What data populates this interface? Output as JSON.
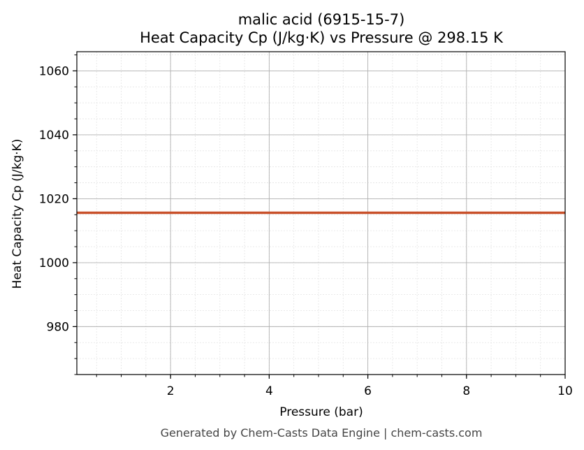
{
  "chart_data": {
    "type": "line",
    "title": "malic acid (6915-15-7)",
    "subtitle": "Heat Capacity Cp (J/kg·K) vs Pressure @ 298.15 K",
    "xlabel": "Pressure (bar)",
    "ylabel": "Heat Capacity Cp (J/kg·K)",
    "xlim": [
      0.1,
      10
    ],
    "ylim": [
      965,
      1066
    ],
    "x_ticks": [
      2,
      4,
      6,
      8,
      10
    ],
    "y_ticks": [
      980,
      1000,
      1020,
      1040,
      1060
    ],
    "x_minor_step": 0.5,
    "y_minor_step": 5,
    "grid": true,
    "series": [
      {
        "color": "#c8502a",
        "x": [
          0.1,
          10
        ],
        "y": [
          1015.6,
          1015.6
        ]
      }
    ]
  },
  "footer": "Generated by Chem-Casts Data Engine | chem-casts.com"
}
